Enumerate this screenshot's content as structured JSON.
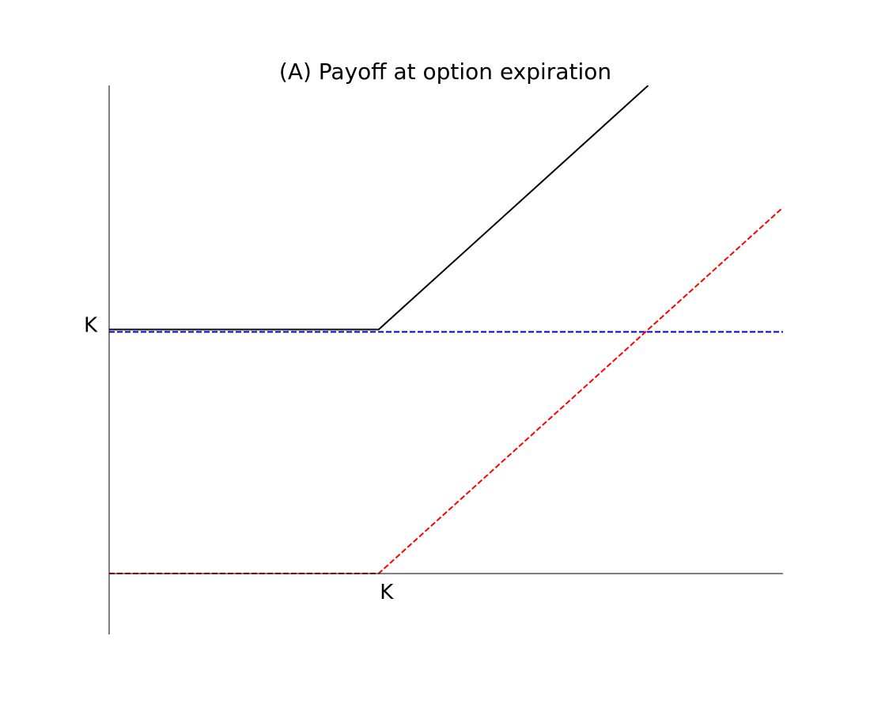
{
  "chart_data": {
    "type": "line",
    "title": "(A) Payoff at option expiration",
    "xlabel": "",
    "ylabel": "",
    "x_ticks": [
      {
        "value": 1.0,
        "label": "K"
      }
    ],
    "y_ticks": [
      {
        "value": 1.0,
        "label": "K"
      }
    ],
    "xlim": [
      0,
      2.5
    ],
    "ylim": [
      -0.25,
      2.0
    ],
    "grid": false,
    "legend": "none",
    "series": [
      {
        "style": "solid",
        "color": "#000000",
        "x": [
          0,
          1.0,
          2.0
        ],
        "y": [
          1.0,
          1.0,
          2.0
        ]
      },
      {
        "style": "dashed",
        "color": "#0000cc",
        "x": [
          0,
          2.5
        ],
        "y": [
          0.99,
          0.99
        ]
      },
      {
        "style": "dashed",
        "color": "#ff0000",
        "x": [
          0,
          1.0,
          2.5
        ],
        "y": [
          0.0,
          0.0,
          1.5
        ]
      }
    ]
  }
}
